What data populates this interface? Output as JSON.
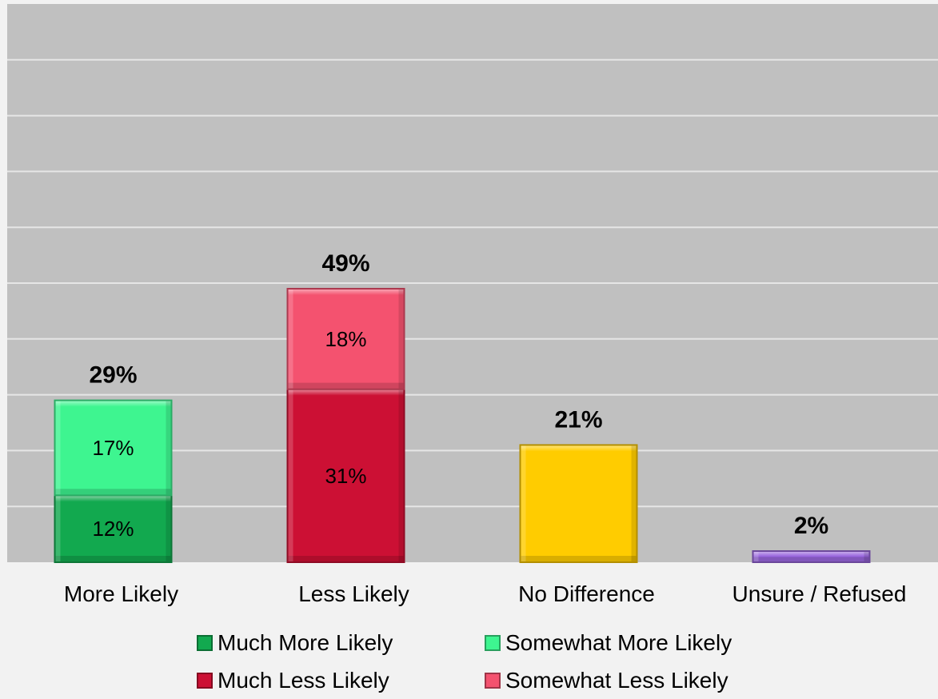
{
  "chart_data": {
    "type": "bar",
    "stacked": true,
    "categories": [
      "More Likely",
      "Less Likely",
      "No Difference",
      "Unsure / Refused"
    ],
    "totals": [
      "29%",
      "49%",
      "21%",
      "2%"
    ],
    "ylim": [
      0,
      100
    ],
    "grid": true,
    "legend_position": "bottom",
    "series": [
      {
        "name": "Much More Likely",
        "color": "#12a94f",
        "values": [
          12,
          null,
          null,
          null
        ],
        "labels": [
          "12%",
          "",
          "",
          ""
        ]
      },
      {
        "name": "Somewhat More Likely",
        "color": "#3ef590",
        "values": [
          17,
          null,
          null,
          null
        ],
        "labels": [
          "17%",
          "",
          "",
          ""
        ]
      },
      {
        "name": "Much Less Likely",
        "color": "#cc1034",
        "values": [
          null,
          31,
          null,
          null
        ],
        "labels": [
          "",
          "31%",
          "",
          ""
        ]
      },
      {
        "name": "Somewhat Less Likely",
        "color": "#f4526f",
        "values": [
          null,
          18,
          null,
          null
        ],
        "labels": [
          "",
          "18%",
          "",
          ""
        ]
      },
      {
        "color": "#ffcc00",
        "values": [
          null,
          null,
          21,
          null
        ],
        "labels": [
          "",
          "",
          "",
          ""
        ]
      },
      {
        "color": "#9966dd",
        "values": [
          null,
          null,
          null,
          2
        ],
        "labels": [
          "",
          "",
          "",
          ""
        ]
      }
    ],
    "legend": [
      {
        "name": "Much More Likely",
        "color": "#12a94f"
      },
      {
        "name": "Somewhat More Likely",
        "color": "#3ef590"
      },
      {
        "name": "Much Less Likely",
        "color": "#cc1034"
      },
      {
        "name": "Somewhat Less Likely",
        "color": "#f4526f"
      }
    ]
  }
}
